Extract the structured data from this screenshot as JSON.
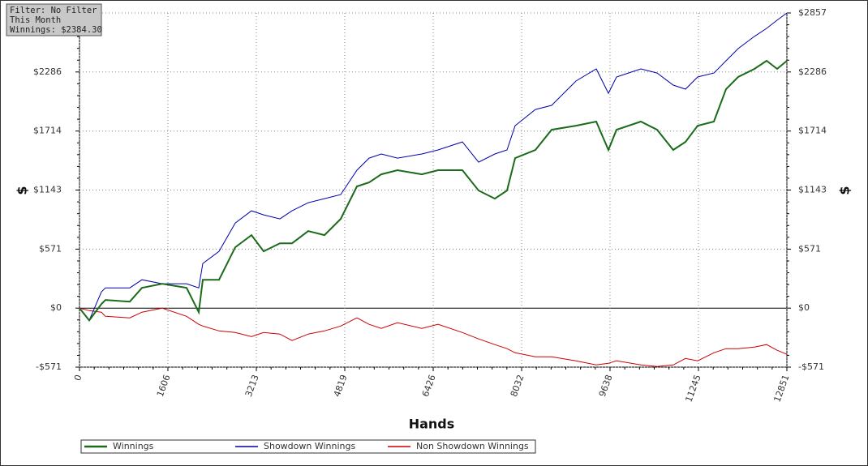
{
  "chart_data": {
    "type": "line",
    "info": [
      "Filter: No Filter",
      "This Month",
      "Winnings: $2384.30"
    ],
    "xlabel": "Hands",
    "ylabel": "$",
    "xlim": [
      0,
      12851
    ],
    "xticks": [
      0,
      1606,
      3213,
      4819,
      6426,
      8032,
      9638,
      11245,
      12851
    ],
    "ylim": [
      -571,
      2857
    ],
    "yticks": [
      {
        "value": -571,
        "label": "-$571"
      },
      {
        "value": 0,
        "label": "$0"
      },
      {
        "value": 571,
        "label": "$571"
      },
      {
        "value": 1143,
        "label": "$1143"
      },
      {
        "value": 1714,
        "label": "$1714"
      },
      {
        "value": 2286,
        "label": "$2286"
      },
      {
        "value": 2857,
        "label": "$2857"
      }
    ],
    "grid": true,
    "x": [
      0,
      177,
      398,
      472,
      914,
      1135,
      1503,
      1945,
      2166,
      2240,
      2535,
      2830,
      3124,
      3345,
      3640,
      3861,
      4156,
      4451,
      4745,
      5040,
      5261,
      5482,
      5777,
      6219,
      6514,
      6956,
      7251,
      7545,
      7766,
      7914,
      8282,
      8577,
      9019,
      9387,
      9609,
      9756,
      10198,
      10493,
      10787,
      11009,
      11230,
      11524,
      11745,
      11966,
      12261,
      12482,
      12674,
      12851
    ],
    "series": [
      {
        "name": "Winnings",
        "color": "#1a6b1a",
        "width": 2,
        "values": [
          0,
          -118,
          39,
          79,
          63,
          196,
          236,
          196,
          -39,
          275,
          275,
          589,
          707,
          550,
          628,
          628,
          746,
          707,
          864,
          1178,
          1217,
          1295,
          1335,
          1295,
          1335,
          1335,
          1138,
          1060,
          1138,
          1452,
          1531,
          1727,
          1766,
          1806,
          1531,
          1727,
          1806,
          1727,
          1531,
          1609,
          1766,
          1806,
          2120,
          2237,
          2316,
          2394,
          2316,
          2394
        ]
      },
      {
        "name": "Showdown Winnings",
        "color": "#0000aa",
        "width": 1,
        "values": [
          0,
          -118,
          157,
          196,
          196,
          275,
          236,
          236,
          196,
          432,
          550,
          824,
          942,
          903,
          864,
          942,
          1021,
          1060,
          1099,
          1335,
          1452,
          1492,
          1452,
          1492,
          1531,
          1609,
          1413,
          1492,
          1531,
          1766,
          1923,
          1963,
          2198,
          2316,
          2080,
          2237,
          2316,
          2276,
          2159,
          2120,
          2237,
          2276,
          2394,
          2512,
          2630,
          2708,
          2787,
          2857
        ]
      },
      {
        "name": "Non Showdown Winnings",
        "color": "#cc0000",
        "width": 1,
        "values": [
          0,
          -24,
          -39,
          -79,
          -94,
          -39,
          0,
          -79,
          -157,
          -173,
          -220,
          -236,
          -275,
          -236,
          -251,
          -314,
          -251,
          -220,
          -173,
          -94,
          -157,
          -196,
          -141,
          -196,
          -157,
          -236,
          -298,
          -353,
          -392,
          -432,
          -471,
          -471,
          -510,
          -550,
          -534,
          -510,
          -550,
          -565,
          -550,
          -487,
          -510,
          -432,
          -392,
          -392,
          -377,
          -353,
          -408,
          -447
        ]
      }
    ]
  }
}
